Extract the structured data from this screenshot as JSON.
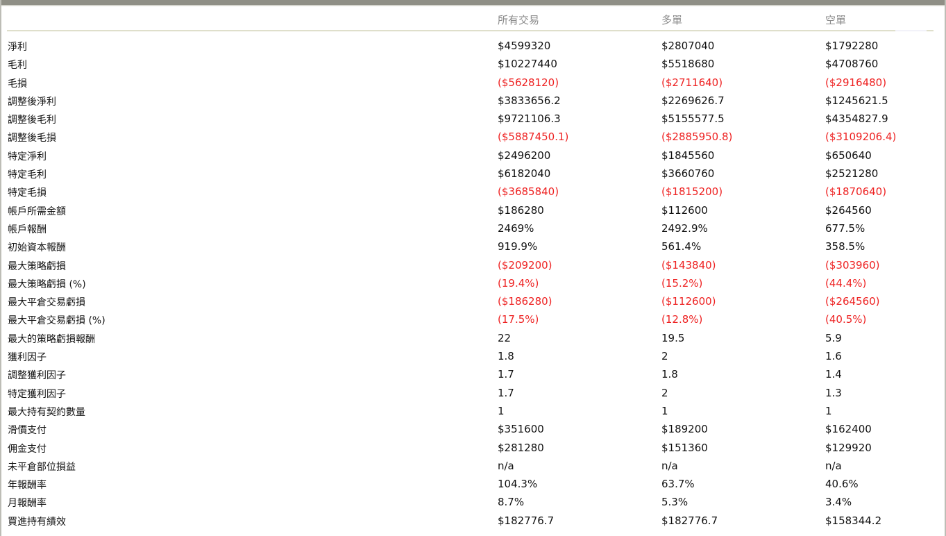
{
  "header": {
    "col_all": "所有交易",
    "col_long": "多單",
    "col_short": "空單"
  },
  "colors": {
    "negative": "#ee2222",
    "header_text": "#8a8a8a",
    "header_rule": "#b4b486"
  },
  "rows": [
    {
      "label": "淨利",
      "all": "$4599320",
      "long": "$2807040",
      "short": "$1792280",
      "neg": false
    },
    {
      "label": "毛利",
      "all": "$10227440",
      "long": "$5518680",
      "short": "$4708760",
      "neg": false
    },
    {
      "label": "毛損",
      "all": "($5628120)",
      "long": "($2711640)",
      "short": "($2916480)",
      "neg": true
    },
    {
      "label": "調整後淨利",
      "all": "$3833656.2",
      "long": "$2269626.7",
      "short": "$1245621.5",
      "neg": false
    },
    {
      "label": "調整後毛利",
      "all": "$9721106.3",
      "long": "$5155577.5",
      "short": "$4354827.9",
      "neg": false
    },
    {
      "label": "調整後毛損",
      "all": "($5887450.1)",
      "long": "($2885950.8)",
      "short": "($3109206.4)",
      "neg": true
    },
    {
      "label": "特定淨利",
      "all": "$2496200",
      "long": "$1845560",
      "short": "$650640",
      "neg": false
    },
    {
      "label": "特定毛利",
      "all": "$6182040",
      "long": "$3660760",
      "short": "$2521280",
      "neg": false
    },
    {
      "label": "特定毛損",
      "all": "($3685840)",
      "long": "($1815200)",
      "short": "($1870640)",
      "neg": true
    },
    {
      "label": "帳戶所需金額",
      "all": "$186280",
      "long": "$112600",
      "short": "$264560",
      "neg": false
    },
    {
      "label": "帳戶報酬",
      "all": "2469%",
      "long": "2492.9%",
      "short": "677.5%",
      "neg": false
    },
    {
      "label": "初始資本報酬",
      "all": "919.9%",
      "long": "561.4%",
      "short": "358.5%",
      "neg": false
    },
    {
      "label": "最大策略虧損",
      "all": "($209200)",
      "long": "($143840)",
      "short": "($303960)",
      "neg": true
    },
    {
      "label": "最大策略虧損 (%)",
      "all": "(19.4%)",
      "long": "(15.2%)",
      "short": "(44.4%)",
      "neg": true
    },
    {
      "label": "最大平倉交易虧損",
      "all": "($186280)",
      "long": "($112600)",
      "short": "($264560)",
      "neg": true
    },
    {
      "label": "最大平倉交易虧損 (%)",
      "all": "(17.5%)",
      "long": "(12.8%)",
      "short": "(40.5%)",
      "neg": true
    },
    {
      "label": "最大的策略虧損報酬",
      "all": "22",
      "long": "19.5",
      "short": "5.9",
      "neg": false
    },
    {
      "label": "獲利因子",
      "all": "1.8",
      "long": "2",
      "short": "1.6",
      "neg": false
    },
    {
      "label": "調整獲利因子",
      "all": "1.7",
      "long": "1.8",
      "short": "1.4",
      "neg": false
    },
    {
      "label": "特定獲利因子",
      "all": "1.7",
      "long": "2",
      "short": "1.3",
      "neg": false
    },
    {
      "label": "最大持有契約數量",
      "all": "1",
      "long": "1",
      "short": "1",
      "neg": false
    },
    {
      "label": "滑價支付",
      "all": "$351600",
      "long": "$189200",
      "short": "$162400",
      "neg": false
    },
    {
      "label": "佣金支付",
      "all": "$281280",
      "long": "$151360",
      "short": "$129920",
      "neg": false
    },
    {
      "label": "未平倉部位損益",
      "all": "n/a",
      "long": "n/a",
      "short": "n/a",
      "neg": false
    },
    {
      "label": "年報酬率",
      "all": "104.3%",
      "long": "63.7%",
      "short": "40.6%",
      "neg": false
    },
    {
      "label": "月報酬率",
      "all": "8.7%",
      "long": "5.3%",
      "short": "3.4%",
      "neg": false
    },
    {
      "label": "買進持有績效",
      "all": "$182776.7",
      "long": "$182776.7",
      "short": "$158344.2",
      "neg": false
    }
  ]
}
